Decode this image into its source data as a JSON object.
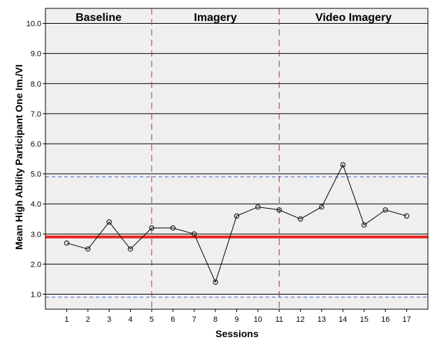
{
  "chart_data": {
    "type": "line",
    "xlabel": "Sessions",
    "ylabel": "Mean High Ability Participant One Im./VI",
    "xlim": [
      0,
      18
    ],
    "ylim": [
      0.5,
      10.5
    ],
    "x_ticks": [
      1,
      2,
      3,
      4,
      5,
      6,
      7,
      8,
      9,
      10,
      11,
      12,
      13,
      14,
      15,
      16,
      17
    ],
    "y_ticks": [
      "1.0",
      "2.0",
      "3.0",
      "4.0",
      "5.0",
      "6.0",
      "7.0",
      "8.0",
      "9.0",
      "10.0"
    ],
    "grid": true,
    "series": [
      {
        "x": [
          1,
          2,
          3,
          4,
          5,
          6,
          7,
          8,
          9,
          10,
          11,
          12,
          13,
          14,
          15,
          16,
          17
        ],
        "values": [
          2.7,
          2.5,
          3.4,
          2.5,
          3.2,
          3.2,
          3.0,
          1.4,
          3.6,
          3.9,
          3.8,
          3.5,
          3.9,
          5.3,
          3.3,
          3.8,
          3.6
        ],
        "color": "#000000"
      }
    ],
    "phase_lines": [
      5,
      11
    ],
    "phases": [
      {
        "label": "Baseline",
        "start": 0,
        "end": 5
      },
      {
        "label": "Imagery",
        "start": 5,
        "end": 11
      },
      {
        "label": "Video Imagery",
        "start": 11,
        "end": 18
      }
    ],
    "reference_lines": {
      "mean": {
        "y": 2.9,
        "color": "#e8231f"
      },
      "bands": [
        4.9,
        0.9
      ],
      "band_color": "#4a5fd6"
    },
    "phase_line_color": "#d6202a",
    "background_color": "#efefef"
  }
}
